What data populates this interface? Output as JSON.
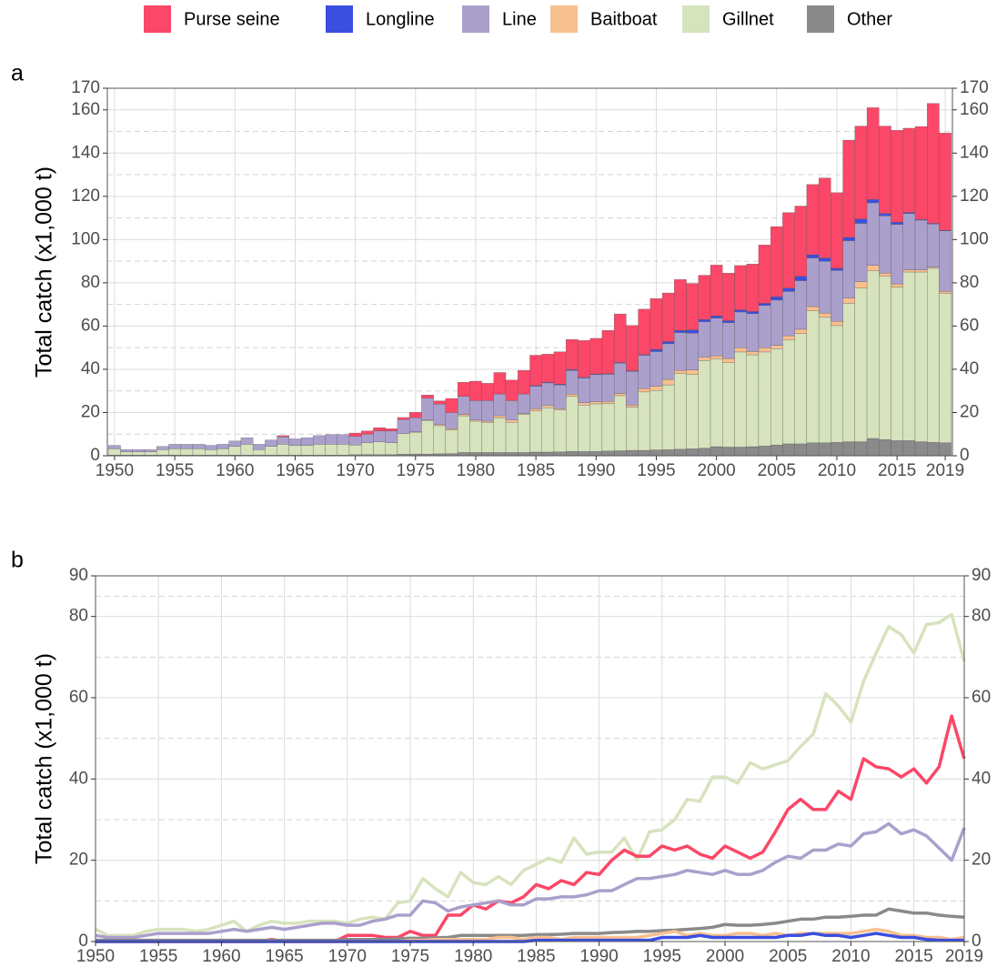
{
  "chart_data": [
    {
      "type": "bar",
      "label": "a",
      "ylabel": "Total catch (x1,000 t)",
      "x": [
        1950,
        1951,
        1952,
        1953,
        1954,
        1955,
        1956,
        1957,
        1958,
        1959,
        1960,
        1961,
        1962,
        1963,
        1964,
        1965,
        1966,
        1967,
        1968,
        1969,
        1970,
        1971,
        1972,
        1973,
        1974,
        1975,
        1976,
        1977,
        1978,
        1979,
        1980,
        1981,
        1982,
        1983,
        1984,
        1985,
        1986,
        1987,
        1988,
        1989,
        1990,
        1991,
        1992,
        1993,
        1994,
        1995,
        1996,
        1997,
        1998,
        1999,
        2000,
        2001,
        2002,
        2003,
        2004,
        2005,
        2006,
        2007,
        2008,
        2009,
        2010,
        2011,
        2012,
        2013,
        2014,
        2015,
        2016,
        2017,
        2018,
        2019
      ],
      "xlim": [
        1949.4,
        2019.6
      ],
      "xticks": [
        1950,
        1955,
        1960,
        1965,
        1970,
        1975,
        1980,
        1985,
        1990,
        1995,
        2000,
        2005,
        2010,
        2015,
        2019
      ],
      "ylim": [
        0,
        170
      ],
      "yticks": [
        0,
        20,
        40,
        60,
        80,
        100,
        120,
        140,
        160,
        170
      ],
      "y2lim": [
        0,
        170
      ],
      "y2ticks": [
        0,
        20,
        40,
        60,
        80,
        100,
        120,
        140,
        160,
        170
      ],
      "yminorticks": [
        10,
        30,
        50,
        70,
        90,
        110,
        130,
        150
      ],
      "grid": true,
      "series": [
        {
          "name": "Purse seine",
          "color": "#fb4768",
          "values": [
            0,
            0,
            0,
            0,
            0,
            0,
            0,
            0,
            0,
            0,
            0,
            0,
            0,
            0,
            0.5,
            0,
            0,
            0,
            0,
            0,
            1.5,
            1.5,
            1.5,
            1,
            1,
            2.5,
            1.5,
            1.5,
            6.5,
            6.5,
            9,
            8,
            10,
            9.5,
            11,
            14,
            13,
            15,
            14,
            17,
            16.5,
            20,
            22.5,
            21,
            21,
            23.5,
            22.5,
            23.5,
            21.5,
            20.5,
            23.5,
            22,
            20.5,
            22,
            27,
            32.5,
            35,
            32.5,
            32.5,
            37,
            35,
            45,
            43,
            42.5,
            40.5,
            42.5,
            39,
            43,
            55.5,
            45
          ]
        },
        {
          "name": "Longline",
          "color": "#3a4fe0",
          "values": [
            0,
            0,
            0,
            0,
            0,
            0,
            0,
            0,
            0,
            0,
            0,
            0,
            0,
            0,
            0,
            0,
            0,
            0,
            0,
            0,
            0,
            0,
            0,
            0,
            0,
            0,
            0,
            0,
            0,
            0,
            0,
            0,
            0,
            0,
            0,
            0.3,
            0.3,
            0.3,
            0.3,
            0.3,
            0.3,
            0.3,
            0.3,
            0.3,
            0.3,
            1,
            1,
            1,
            1.5,
            1,
            1,
            1,
            1,
            1,
            1,
            1.5,
            1.5,
            2,
            1.5,
            1.5,
            1,
            1.5,
            2,
            1.5,
            1,
            1,
            0.5,
            0.3,
            0.3,
            0.3
          ]
        },
        {
          "name": "Line",
          "color": "#ab9fcc",
          "values": [
            1.5,
            1,
            1,
            1,
            1.5,
            2,
            2,
            2,
            2,
            2,
            2.5,
            3,
            2.5,
            3,
            3.5,
            3,
            3.5,
            4,
            4.5,
            4.5,
            4,
            4,
            5,
            5.5,
            6.5,
            6.5,
            10,
            9.5,
            7.5,
            8.5,
            9,
            9.5,
            10,
            9,
            9,
            10.5,
            10.5,
            11,
            11,
            11.5,
            12.5,
            12.5,
            14,
            15.5,
            15.5,
            16,
            16.5,
            17.5,
            17,
            16.5,
            17.5,
            16.5,
            16.5,
            17.5,
            19.5,
            21,
            20.5,
            22.5,
            22.5,
            24,
            23.5,
            26.5,
            27,
            29,
            26.5,
            27.5,
            26,
            23,
            20,
            28
          ]
        },
        {
          "name": "Baitboat",
          "color": "#f8c08f",
          "values": [
            0,
            0,
            0,
            0,
            0,
            0,
            0,
            0,
            0,
            0,
            0,
            0,
            0,
            0,
            0,
            0,
            0,
            0,
            0,
            0,
            0,
            0,
            0,
            0,
            0,
            0.3,
            0.3,
            0.5,
            0.5,
            0.5,
            0.5,
            0.5,
            1,
            1,
            0.5,
            1,
            1,
            0.5,
            1,
            1,
            1,
            1,
            1,
            1,
            1.5,
            2,
            2.5,
            1.5,
            2,
            1.5,
            1.5,
            2,
            2,
            1.5,
            2,
            1.5,
            2,
            2,
            2,
            2,
            2,
            2.5,
            3,
            2.5,
            1.5,
            1.5,
            1,
            1,
            0.5,
            1
          ]
        },
        {
          "name": "Gillnet",
          "color": "#d6e3bd",
          "values": [
            3,
            1.5,
            1.5,
            1.5,
            2.5,
            3,
            3,
            3,
            2.5,
            3,
            4,
            5,
            2.5,
            4,
            5,
            4.5,
            4.5,
            5,
            5,
            5,
            4.5,
            5.5,
            6,
            5.5,
            9.5,
            10,
            15.5,
            13,
            11,
            17,
            14.5,
            14,
            16,
            14,
            17.5,
            19,
            20.5,
            19.5,
            25.5,
            21.5,
            22,
            22,
            25.5,
            20,
            27,
            27.5,
            30,
            35,
            34.5,
            40.5,
            40.5,
            39,
            44,
            42.5,
            43.5,
            44.5,
            48,
            51,
            61,
            58,
            54,
            64,
            71,
            77.5,
            75.5,
            71,
            78,
            78.5,
            80.5,
            69
          ]
        },
        {
          "name": "Other",
          "color": "#8a8a8a",
          "values": [
            0.3,
            0.3,
            0.3,
            0.3,
            0.3,
            0.3,
            0.3,
            0.3,
            0.3,
            0.3,
            0.3,
            0.3,
            0.3,
            0.3,
            0.3,
            0.3,
            0.3,
            0.3,
            0.3,
            0.3,
            0.5,
            0.5,
            0.5,
            0.5,
            0.7,
            0.8,
            0.8,
            0.9,
            1,
            1.5,
            1.5,
            1.5,
            1.5,
            1.5,
            1.5,
            1.7,
            1.7,
            1.8,
            2,
            2,
            2,
            2.2,
            2.3,
            2.5,
            2.5,
            2.7,
            2.8,
            3,
            3.2,
            3.5,
            4.2,
            4,
            4,
            4.2,
            4.5,
            5,
            5.5,
            5.5,
            6,
            6,
            6.2,
            6.5,
            6.5,
            8,
            7.5,
            7,
            7,
            6.5,
            6.2,
            6
          ]
        }
      ]
    },
    {
      "type": "line",
      "label": "b",
      "ylabel": "Total catch (x1,000 t)",
      "x": [
        1950,
        1951,
        1952,
        1953,
        1954,
        1955,
        1956,
        1957,
        1958,
        1959,
        1960,
        1961,
        1962,
        1963,
        1964,
        1965,
        1966,
        1967,
        1968,
        1969,
        1970,
        1971,
        1972,
        1973,
        1974,
        1975,
        1976,
        1977,
        1978,
        1979,
        1980,
        1981,
        1982,
        1983,
        1984,
        1985,
        1986,
        1987,
        1988,
        1989,
        1990,
        1991,
        1992,
        1993,
        1994,
        1995,
        1996,
        1997,
        1998,
        1999,
        2000,
        2001,
        2002,
        2003,
        2004,
        2005,
        2006,
        2007,
        2008,
        2009,
        2010,
        2011,
        2012,
        2013,
        2014,
        2015,
        2016,
        2017,
        2018,
        2019
      ],
      "xlim": [
        1950,
        2019
      ],
      "xticks": [
        1950,
        1955,
        1960,
        1965,
        1970,
        1975,
        1980,
        1985,
        1990,
        1995,
        2000,
        2005,
        2010,
        2015,
        2019
      ],
      "ylim": [
        0,
        90
      ],
      "yticks": [
        0,
        20,
        40,
        60,
        80,
        90
      ],
      "y2lim": [
        0,
        90
      ],
      "y2ticks": [
        0,
        20,
        40,
        60,
        80,
        90
      ],
      "yminorticks": [
        10,
        30,
        50,
        70,
        85
      ],
      "grid": true,
      "series": [
        {
          "name": "Purse seine",
          "color": "#fb4768",
          "values": [
            0,
            0,
            0,
            0,
            0,
            0,
            0,
            0,
            0,
            0,
            0,
            0,
            0,
            0,
            0.5,
            0,
            0,
            0,
            0,
            0,
            1.5,
            1.5,
            1.5,
            1,
            1,
            2.5,
            1.5,
            1.5,
            6.5,
            6.5,
            9,
            8,
            10,
            9.5,
            11,
            14,
            13,
            15,
            14,
            17,
            16.5,
            20,
            22.5,
            21,
            21,
            23.5,
            22.5,
            23.5,
            21.5,
            20.5,
            23.5,
            22,
            20.5,
            22,
            27,
            32.5,
            35,
            32.5,
            32.5,
            37,
            35,
            45,
            43,
            42.5,
            40.5,
            42.5,
            39,
            43,
            55.5,
            45
          ]
        },
        {
          "name": "Longline",
          "color": "#3a4fe0",
          "values": [
            0,
            0,
            0,
            0,
            0,
            0,
            0,
            0,
            0,
            0,
            0,
            0,
            0,
            0,
            0,
            0,
            0,
            0,
            0,
            0,
            0,
            0,
            0,
            0,
            0,
            0,
            0,
            0,
            0,
            0,
            0,
            0,
            0,
            0,
            0,
            0.3,
            0.3,
            0.3,
            0.3,
            0.3,
            0.3,
            0.3,
            0.3,
            0.3,
            0.3,
            1,
            1,
            1,
            1.5,
            1,
            1,
            1,
            1,
            1,
            1,
            1.5,
            1.5,
            2,
            1.5,
            1.5,
            1,
            1.5,
            2,
            1.5,
            1,
            1,
            0.5,
            0.3,
            0.3,
            0.3
          ]
        },
        {
          "name": "Line",
          "color": "#ab9fcc",
          "values": [
            1.5,
            1,
            1,
            1,
            1.5,
            2,
            2,
            2,
            2,
            2,
            2.5,
            3,
            2.5,
            3,
            3.5,
            3,
            3.5,
            4,
            4.5,
            4.5,
            4,
            4,
            5,
            5.5,
            6.5,
            6.5,
            10,
            9.5,
            7.5,
            8.5,
            9,
            9.5,
            10,
            9,
            9,
            10.5,
            10.5,
            11,
            11,
            11.5,
            12.5,
            12.5,
            14,
            15.5,
            15.5,
            16,
            16.5,
            17.5,
            17,
            16.5,
            17.5,
            16.5,
            16.5,
            17.5,
            19.5,
            21,
            20.5,
            22.5,
            22.5,
            24,
            23.5,
            26.5,
            27,
            29,
            26.5,
            27.5,
            26,
            23,
            20,
            28
          ]
        },
        {
          "name": "Baitboat",
          "color": "#f8c08f",
          "values": [
            0,
            0,
            0,
            0,
            0,
            0,
            0,
            0,
            0,
            0,
            0,
            0,
            0,
            0,
            0,
            0,
            0,
            0,
            0,
            0,
            0,
            0,
            0,
            0,
            0,
            0.3,
            0.3,
            0.5,
            0.5,
            0.5,
            0.5,
            0.5,
            1,
            1,
            0.5,
            1,
            1,
            0.5,
            1,
            1,
            1,
            1,
            1,
            1,
            1.5,
            2,
            2.5,
            1.5,
            2,
            1.5,
            1.5,
            2,
            2,
            1.5,
            2,
            1.5,
            2,
            2,
            2,
            2,
            2,
            2.5,
            3,
            2.5,
            1.5,
            1.5,
            1,
            1,
            0.5,
            1
          ]
        },
        {
          "name": "Gillnet",
          "color": "#d6e3bd",
          "values": [
            3,
            1.5,
            1.5,
            1.5,
            2.5,
            3,
            3,
            3,
            2.5,
            3,
            4,
            5,
            2.5,
            4,
            5,
            4.5,
            4.5,
            5,
            5,
            5,
            4.5,
            5.5,
            6,
            5.5,
            9.5,
            10,
            15.5,
            13,
            11,
            17,
            14.5,
            14,
            16,
            14,
            17.5,
            19,
            20.5,
            19.5,
            25.5,
            21.5,
            22,
            22,
            25.5,
            20,
            27,
            27.5,
            30,
            35,
            34.5,
            40.5,
            40.5,
            39,
            44,
            42.5,
            43.5,
            44.5,
            48,
            51,
            61,
            58,
            54,
            64,
            71,
            77.5,
            75.5,
            71,
            78,
            78.5,
            80.5,
            69
          ]
        },
        {
          "name": "Other",
          "color": "#8a8a8a",
          "values": [
            0.3,
            0.3,
            0.3,
            0.3,
            0.3,
            0.3,
            0.3,
            0.3,
            0.3,
            0.3,
            0.3,
            0.3,
            0.3,
            0.3,
            0.3,
            0.3,
            0.3,
            0.3,
            0.3,
            0.3,
            0.5,
            0.5,
            0.5,
            0.5,
            0.7,
            0.8,
            0.8,
            0.9,
            1,
            1.5,
            1.5,
            1.5,
            1.5,
            1.5,
            1.5,
            1.7,
            1.7,
            1.8,
            2,
            2,
            2,
            2.2,
            2.3,
            2.5,
            2.5,
            2.7,
            2.8,
            3,
            3.2,
            3.5,
            4.2,
            4,
            4,
            4.2,
            4.5,
            5,
            5.5,
            5.5,
            6,
            6,
            6.2,
            6.5,
            6.5,
            8,
            7.5,
            7,
            7,
            6.5,
            6.2,
            6
          ]
        }
      ]
    }
  ]
}
